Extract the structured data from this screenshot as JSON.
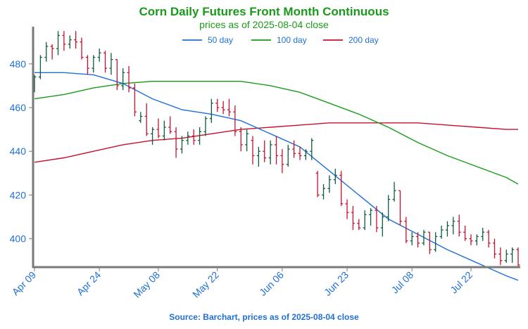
{
  "chart_data": {
    "type": "candlestick",
    "title": "Corn Daily Futures Front Month Continuous",
    "subtitle": "prices as of 2025-08-04 close",
    "source": "Source: Barchart, prices as of 2025-08-04 close",
    "ylim": [
      387,
      497
    ],
    "yticks": [
      400,
      420,
      440,
      460,
      480
    ],
    "x_tick_labels": [
      "Apr 09",
      "Apr 24",
      "May 08",
      "May 22",
      "Jun 06",
      "Jun 23",
      "Jul 08",
      "Jul 22"
    ],
    "x_tick_index": [
      0,
      11,
      21,
      31,
      42,
      53,
      64,
      74
    ],
    "x_count": 83,
    "grid": false,
    "legend_position": "top",
    "colors": {
      "up": "#0d5c3a",
      "down": "#c8102e",
      "ma50": "#1f6fd6",
      "ma100": "#1a9a1a",
      "ma200": "#c8102e",
      "axis_text": "#1f6fd6"
    },
    "ohlc": [
      [
        470.5,
        475,
        467,
        474
      ],
      [
        474,
        484,
        473,
        483
      ],
      [
        483,
        490,
        481,
        488
      ],
      [
        488,
        489,
        482,
        487
      ],
      [
        487,
        495,
        484,
        493
      ],
      [
        493,
        495,
        486,
        489
      ],
      [
        489,
        493,
        487,
        491
      ],
      [
        491,
        495,
        487,
        490
      ],
      [
        490,
        492,
        482,
        483
      ],
      [
        483,
        484,
        475,
        478
      ],
      [
        478,
        484,
        476,
        483
      ],
      [
        483,
        487,
        481,
        485
      ],
      [
        485,
        486,
        476,
        478
      ],
      [
        478,
        485,
        475,
        482
      ],
      [
        482,
        482,
        468,
        470
      ],
      [
        470,
        478,
        468,
        476
      ],
      [
        476,
        479,
        467,
        469
      ],
      [
        469,
        471,
        456,
        458
      ],
      [
        454,
        458,
        453,
        456
      ],
      [
        456,
        462,
        447,
        448
      ],
      [
        448,
        451,
        443,
        450
      ],
      [
        450,
        455,
        446,
        447
      ],
      [
        447,
        454,
        445,
        451
      ],
      [
        451,
        456,
        448,
        449
      ],
      [
        449,
        451,
        437,
        441
      ],
      [
        441,
        447,
        439,
        445
      ],
      [
        445,
        449,
        443,
        447
      ],
      [
        447,
        450,
        443,
        445
      ],
      [
        445,
        451,
        443,
        449
      ],
      [
        449,
        456,
        447,
        455
      ],
      [
        455,
        464,
        453,
        462
      ],
      [
        462,
        464,
        458,
        460
      ],
      [
        460,
        463,
        457,
        459
      ],
      [
        459,
        464,
        456,
        458
      ],
      [
        458,
        461,
        447,
        449
      ],
      [
        449,
        451,
        440,
        443
      ],
      [
        443,
        450,
        440,
        448
      ],
      [
        445,
        447,
        434,
        438
      ],
      [
        438,
        442,
        433,
        440
      ],
      [
        440,
        445,
        435,
        437
      ],
      [
        437,
        445,
        434,
        443
      ],
      [
        443,
        447,
        434,
        438
      ],
      [
        438,
        441,
        430,
        434
      ],
      [
        434,
        443,
        433,
        441
      ],
      [
        441,
        445,
        437,
        439
      ],
      [
        439,
        442,
        436,
        438
      ],
      [
        438,
        441,
        436,
        440
      ],
      [
        440,
        446,
        436,
        445
      ],
      [
        430,
        431,
        419,
        420
      ],
      [
        420,
        425,
        418,
        423
      ],
      [
        423,
        429,
        421,
        427
      ],
      [
        427,
        432,
        425,
        429
      ],
      [
        429,
        431,
        415,
        416
      ],
      [
        416,
        418,
        409,
        412
      ],
      [
        412,
        415,
        404,
        407
      ],
      [
        407,
        409,
        404,
        405
      ],
      [
        405,
        413,
        404,
        411
      ],
      [
        411,
        414,
        406,
        413
      ],
      [
        413,
        415,
        403,
        405
      ],
      [
        405,
        412,
        401,
        410
      ],
      [
        410,
        420,
        408,
        418
      ],
      [
        418,
        426,
        417,
        422
      ],
      [
        422,
        422,
        406,
        408
      ],
      [
        408,
        410,
        398,
        399
      ],
      [
        399,
        403,
        397,
        401
      ],
      [
        401,
        403,
        396,
        398
      ],
      [
        398,
        404,
        397,
        403
      ],
      [
        403,
        403,
        393,
        395
      ],
      [
        395,
        403,
        394,
        401
      ],
      [
        401,
        406,
        400,
        404
      ],
      [
        404,
        408,
        401,
        406
      ],
      [
        406,
        410,
        402,
        408
      ],
      [
        408,
        411,
        401,
        403
      ],
      [
        403,
        406,
        399,
        400
      ],
      [
        400,
        402,
        397,
        399
      ],
      [
        399,
        402,
        397,
        401
      ],
      [
        401,
        405,
        399,
        403
      ],
      [
        403,
        404,
        396,
        398
      ],
      [
        398,
        400,
        391,
        393
      ],
      [
        393,
        396,
        388,
        390
      ],
      [
        390,
        395,
        389,
        393
      ],
      [
        393,
        396,
        389,
        395
      ],
      [
        395,
        396,
        387,
        388
      ]
    ],
    "series": [
      {
        "name": "50 day",
        "x": [
          0,
          5,
          10,
          15,
          20,
          25,
          30,
          35,
          40,
          45,
          50,
          55,
          60,
          65,
          70,
          75,
          80,
          82
        ],
        "values": [
          476,
          476,
          475,
          471,
          464,
          459,
          457,
          454,
          448,
          442,
          431,
          420,
          409,
          402,
          395,
          389,
          383,
          381
        ]
      },
      {
        "name": "100 day",
        "x": [
          0,
          5,
          10,
          15,
          20,
          25,
          30,
          35,
          40,
          45,
          50,
          55,
          60,
          65,
          70,
          75,
          80,
          82
        ],
        "values": [
          464,
          466,
          469,
          471,
          472,
          472,
          472,
          472,
          470,
          467,
          462,
          457,
          451,
          444,
          438,
          433,
          428,
          425
        ]
      },
      {
        "name": "200 day",
        "x": [
          0,
          5,
          10,
          15,
          20,
          25,
          30,
          35,
          40,
          45,
          50,
          55,
          60,
          65,
          70,
          75,
          80,
          82
        ],
        "values": [
          435,
          437,
          440,
          443,
          445,
          446,
          448,
          450,
          451,
          452,
          453,
          453,
          453,
          453,
          452,
          451,
          450,
          450
        ]
      }
    ]
  }
}
